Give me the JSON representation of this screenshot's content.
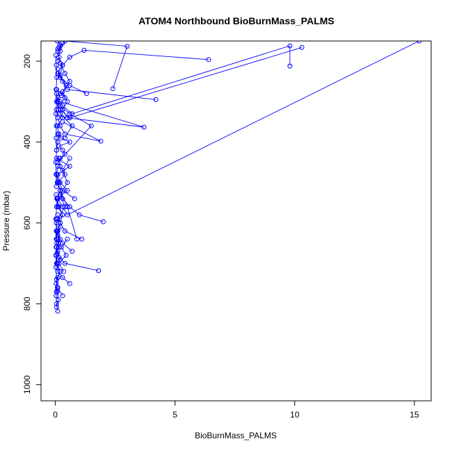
{
  "chart_data": {
    "type": "scatter",
    "title": "ATOM4 Northbound BioBurnMass_PALMS",
    "xlabel": "BioBurnMass_PALMS",
    "ylabel": "Pressure (mbar)",
    "xlim": [
      -0.6,
      15.7
    ],
    "ylim": [
      1040,
      150
    ],
    "y_reversed": true,
    "x_ticks": [
      0,
      5,
      10,
      15
    ],
    "y_ticks": [
      200,
      400,
      600,
      800,
      1000
    ],
    "grid": false,
    "legend": "none",
    "series_color": "#0000ff",
    "marker": "open-circle",
    "series": [
      {
        "x": [
          0.05,
          0.12,
          0.08,
          0.03,
          0.1,
          0.2,
          0.06,
          0.02,
          0.15,
          0.09
        ],
        "y": [
          808,
          790,
          770,
          750,
          735,
          720,
          700,
          680,
          660,
          640
        ]
      },
      {
        "x": [
          0.6,
          0.3,
          0.1,
          0.05,
          0.2,
          0.08,
          0.03,
          0.12,
          0.04,
          0.07
        ],
        "y": [
          750,
          735,
          720,
          700,
          690,
          675,
          660,
          650,
          640,
          620
        ]
      },
      {
        "x": [
          1.8,
          0.4,
          0.15,
          0.1,
          0.05,
          0.2,
          0.08,
          0.04,
          0.3,
          0.1,
          0.06
        ],
        "y": [
          718,
          700,
          685,
          670,
          660,
          640,
          620,
          600,
          580,
          560,
          540
        ]
      },
      {
        "x": [
          0.05,
          0.1,
          0.2,
          0.3,
          0.15,
          0.08,
          0.5,
          0.2,
          0.1,
          0.6,
          0.05
        ],
        "y": [
          640,
          620,
          600,
          580,
          560,
          540,
          520,
          500,
          480,
          460,
          440
        ]
      },
      {
        "x": [
          2.0,
          1.0,
          0.6,
          0.3,
          0.2,
          0.1,
          0.4,
          0.2,
          0.15
        ],
        "y": [
          597,
          580,
          560,
          540,
          520,
          500,
          480,
          460,
          440
        ]
      },
      {
        "x": [
          15.2,
          0.5,
          0.3,
          0.1,
          0.2,
          0.08,
          0.05
        ],
        "y": [
          150,
          580,
          560,
          540,
          520,
          500,
          480
        ]
      },
      {
        "x": [
          0.1,
          0.2,
          0.4,
          0.3,
          0.15,
          0.6,
          0.25,
          0.1
        ],
        "y": [
          450,
          440,
          430,
          420,
          410,
          400,
          390,
          380
        ]
      },
      {
        "x": [
          0.05,
          0.1,
          0.15,
          0.08,
          0.3,
          0.12,
          0.06,
          0.2
        ],
        "y": [
          420,
          400,
          380,
          360,
          340,
          320,
          300,
          280
        ]
      },
      {
        "x": [
          0.3,
          1.9,
          0.4,
          0.2,
          0.1,
          0.05
        ],
        "y": [
          350,
          398,
          380,
          360,
          340,
          320
        ]
      },
      {
        "x": [
          0.2,
          3.7,
          0.5,
          0.3,
          0.1
        ],
        "y": [
          300,
          363,
          340,
          320,
          300
        ]
      },
      {
        "x": [
          0.1,
          1.5,
          0.6,
          0.2,
          0.4,
          0.05
        ],
        "y": [
          450,
          360,
          330,
          310,
          290,
          270
        ]
      },
      {
        "x": [
          9.8,
          9.8,
          0.7,
          0.3,
          0.1
        ],
        "y": [
          212,
          162,
          330,
          310,
          290
        ]
      },
      {
        "x": [
          10.3,
          0.6,
          0.2,
          0.1,
          0.05
        ],
        "y": [
          166,
          340,
          320,
          300,
          280
        ]
      },
      {
        "x": [
          4.2,
          0.5,
          0.3,
          0.1
        ],
        "y": [
          295,
          270,
          250,
          230
        ]
      },
      {
        "x": [
          6.4,
          1.2,
          0.6,
          0.3,
          0.1
        ],
        "y": [
          196,
          173,
          190,
          210,
          230
        ]
      },
      {
        "x": [
          1.3,
          0.6,
          0.2,
          0.1
        ],
        "y": [
          280,
          260,
          240,
          220
        ]
      },
      {
        "x": [
          2.4,
          3.0,
          0.4,
          0.2,
          0.1
        ],
        "y": [
          268,
          163,
          150,
          175,
          200
        ]
      },
      {
        "x": [
          0.8,
          0.3,
          0.15,
          0.05,
          0.1
        ],
        "y": [
          540,
          520,
          500,
          480,
          460
        ]
      },
      {
        "x": [
          1.1,
          0.4,
          0.2,
          0.1
        ],
        "y": [
          640,
          620,
          600,
          580
        ]
      },
      {
        "x": [
          0.7,
          0.3,
          0.1,
          0.2,
          0.05
        ],
        "y": [
          670,
          650,
          630,
          610,
          590
        ]
      },
      {
        "x": [
          0.9,
          0.5,
          0.2,
          0.1
        ],
        "y": [
          640,
          560,
          520,
          500
        ]
      },
      {
        "x": [
          0.3,
          0.1,
          0.05,
          0.2,
          0.08,
          0.03
        ],
        "y": [
          780,
          760,
          740,
          720,
          700,
          680
        ]
      },
      {
        "x": [
          0.1,
          0.05,
          0.03,
          0.08
        ],
        "y": [
          818,
          800,
          780,
          760
        ]
      },
      {
        "x": [
          0.02,
          0.04,
          0.06,
          0.03,
          0.05,
          0.02,
          0.04,
          0.03,
          0.05,
          0.02,
          0.03,
          0.04
        ],
        "y": [
          185,
          210,
          240,
          270,
          300,
          330,
          360,
          390,
          420,
          450,
          480,
          510
        ]
      },
      {
        "x": [
          0.03,
          0.05,
          0.02,
          0.04,
          0.06,
          0.03,
          0.02,
          0.05,
          0.04
        ],
        "y": [
          530,
          560,
          590,
          620,
          650,
          680,
          710,
          740,
          770
        ]
      },
      {
        "x": [
          0.2,
          0.4,
          0.6,
          0.3,
          0.5,
          0.2,
          0.7,
          0.4
        ],
        "y": [
          205,
          230,
          250,
          275,
          300,
          330,
          360,
          390
        ]
      },
      {
        "x": [
          0.1,
          0.15,
          0.3,
          0.2,
          0.45,
          0.25
        ],
        "y": [
          170,
          190,
          210,
          235,
          260,
          285
        ]
      },
      {
        "x": [
          0.6,
          0.3,
          0.5,
          0.2,
          0.4,
          0.1
        ],
        "y": [
          440,
          470,
          500,
          530,
          560,
          590
        ]
      },
      {
        "x": [
          0.5,
          0.25,
          0.45,
          0.15,
          0.35
        ],
        "y": [
          640,
          660,
          680,
          700,
          720
        ]
      },
      {
        "x": [
          0.08,
          0.2,
          0.1,
          0.3,
          0.15
        ],
        "y": [
          150,
          160,
          175,
          155,
          165
        ]
      }
    ]
  }
}
